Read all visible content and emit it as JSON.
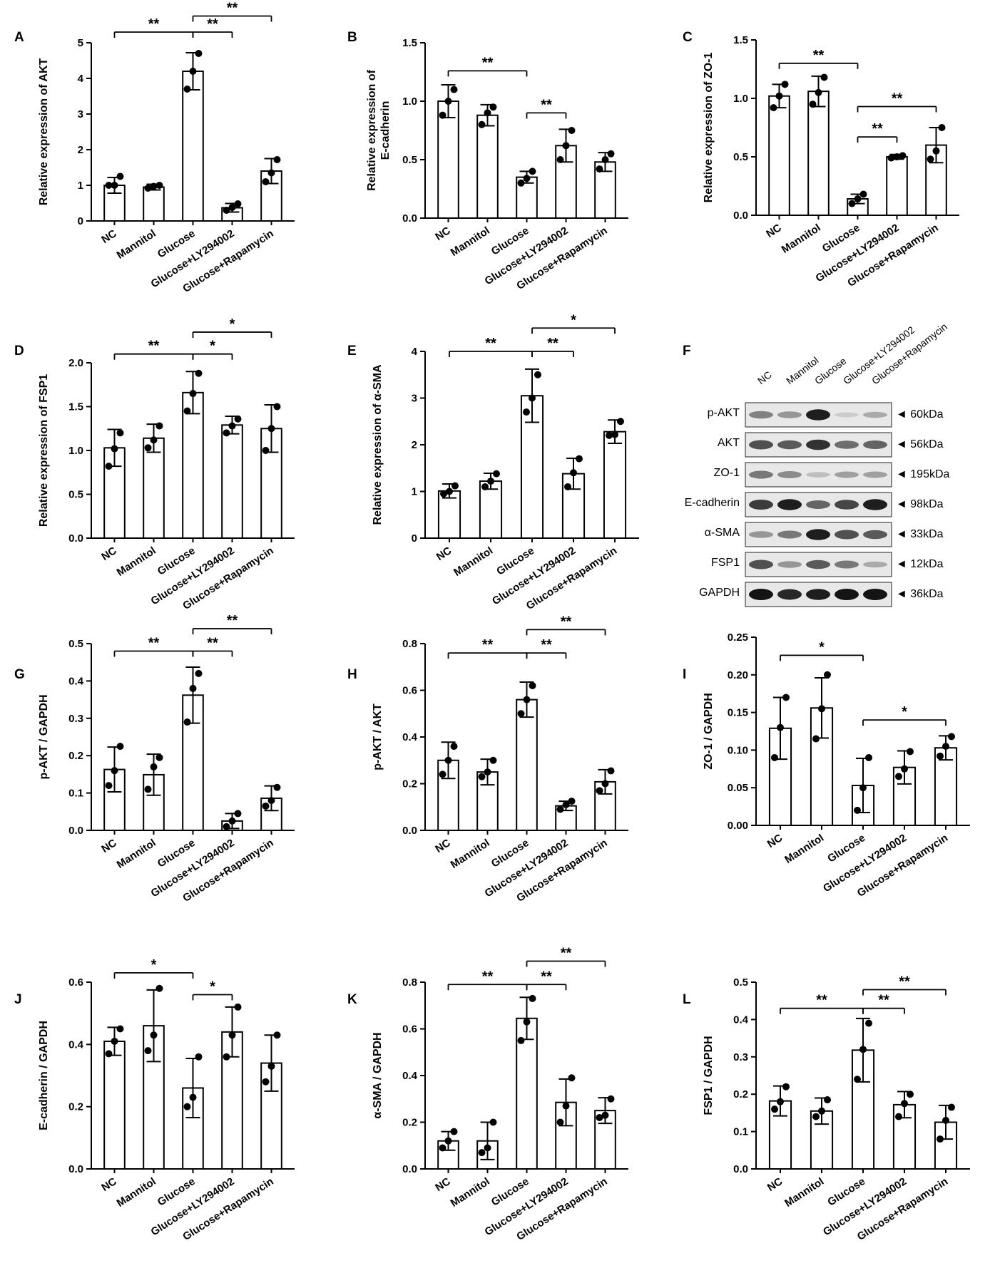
{
  "chart_data": [
    {
      "panel": "A",
      "type": "bar",
      "ylabel": "Relative expression of AKT",
      "ylim": [
        0,
        5
      ],
      "yticks": [
        0,
        1,
        2,
        3,
        4,
        5
      ],
      "categories": [
        "NC",
        "Mannitol",
        "Glucose",
        "Glucose+LY294002",
        "Glucose+Rapamycin"
      ],
      "values": [
        1.0,
        0.95,
        4.2,
        0.37,
        1.4
      ],
      "errors": [
        0.22,
        0.08,
        0.52,
        0.12,
        0.35
      ],
      "points": [
        [
          1.0,
          1.0,
          1.25
        ],
        [
          0.92,
          0.97,
          1.0
        ],
        [
          3.7,
          4.2,
          4.7
        ],
        [
          0.3,
          0.38,
          0.48
        ],
        [
          1.1,
          1.35,
          1.72
        ]
      ],
      "sig": [
        {
          "from": 0,
          "to": 2,
          "label": "**",
          "y": 5.3
        },
        {
          "from": 2,
          "to": 3,
          "label": "**",
          "y": 5.3
        },
        {
          "from": 2,
          "to": 4,
          "label": "**",
          "y": 5.75
        }
      ]
    },
    {
      "panel": "B",
      "type": "bar",
      "ylabel": "Relative expression of E-cadherin",
      "ylim": [
        0,
        1.5
      ],
      "yticks": [
        "0.0",
        "0.5",
        "1.0",
        "1.5"
      ],
      "categories": [
        "NC",
        "Mannitol",
        "Glucose",
        "Glucose+LY294002",
        "Glucose+Rapamycin"
      ],
      "values": [
        1.0,
        0.88,
        0.35,
        0.62,
        0.48
      ],
      "errors": [
        0.14,
        0.09,
        0.05,
        0.14,
        0.08
      ],
      "points": [
        [
          0.88,
          1.0,
          1.1
        ],
        [
          0.8,
          0.9,
          0.95
        ],
        [
          0.3,
          0.34,
          0.4
        ],
        [
          0.5,
          0.62,
          0.75
        ],
        [
          0.42,
          0.5,
          0.55
        ]
      ],
      "sig": [
        {
          "from": 0,
          "to": 2,
          "label": "**",
          "y": 1.26
        },
        {
          "from": 2,
          "to": 3,
          "label": "**",
          "y": 0.9
        }
      ]
    },
    {
      "panel": "C",
      "type": "bar",
      "ylabel": "Relative expression of ZO-1",
      "ylim": [
        0,
        1.5
      ],
      "yticks": [
        "0.0",
        "0.5",
        "1.0",
        "1.5"
      ],
      "categories": [
        "NC",
        "Mannitol",
        "Glucose",
        "Glucose+LY294002",
        "Glucose+Rapamycin"
      ],
      "values": [
        1.02,
        1.06,
        0.14,
        0.5,
        0.6
      ],
      "errors": [
        0.1,
        0.13,
        0.04,
        0.02,
        0.15
      ],
      "points": [
        [
          0.92,
          1.02,
          1.12
        ],
        [
          0.95,
          1.05,
          1.18
        ],
        [
          0.1,
          0.14,
          0.18
        ],
        [
          0.49,
          0.5,
          0.51
        ],
        [
          0.48,
          0.55,
          0.75
        ]
      ],
      "sig": [
        {
          "from": 0,
          "to": 2,
          "label": "**",
          "y": 1.3
        },
        {
          "from": 2,
          "to": 3,
          "label": "**",
          "y": 0.67
        },
        {
          "from": 2,
          "to": 4,
          "label": "**",
          "y": 0.93
        }
      ]
    },
    {
      "panel": "D",
      "type": "bar",
      "ylabel": "Relative expression of FSP1",
      "ylim": [
        0,
        2.0
      ],
      "yticks": [
        "0.0",
        "0.5",
        "1.0",
        "1.5",
        "2.0"
      ],
      "categories": [
        "NC",
        "Mannitol",
        "Glucose",
        "Glucose+LY294002",
        "Glucose+Rapamycin"
      ],
      "values": [
        1.03,
        1.14,
        1.66,
        1.29,
        1.25
      ],
      "errors": [
        0.21,
        0.16,
        0.24,
        0.1,
        0.27
      ],
      "points": [
        [
          0.82,
          1.02,
          1.2
        ],
        [
          1.03,
          1.12,
          1.28
        ],
        [
          1.45,
          1.65,
          1.88
        ],
        [
          1.2,
          1.28,
          1.36
        ],
        [
          1.0,
          1.25,
          1.5
        ]
      ],
      "sig": [
        {
          "from": 0,
          "to": 2,
          "label": "**",
          "y": 2.1
        },
        {
          "from": 2,
          "to": 3,
          "label": "*",
          "y": 2.1
        },
        {
          "from": 2,
          "to": 4,
          "label": "*",
          "y": 2.35
        }
      ]
    },
    {
      "panel": "E",
      "type": "bar",
      "ylabel": "Relative expression of α-SMA",
      "ylim": [
        0,
        4
      ],
      "yticks": [
        0,
        1,
        2,
        3,
        4
      ],
      "categories": [
        "NC",
        "Mannitol",
        "Glucose",
        "Glucose+LY294002",
        "Glucose+Rapamycin"
      ],
      "values": [
        1.01,
        1.22,
        3.05,
        1.38,
        2.28
      ],
      "errors": [
        0.15,
        0.17,
        0.57,
        0.33,
        0.25
      ],
      "points": [
        [
          0.95,
          1.0,
          1.12
        ],
        [
          1.1,
          1.22,
          1.38
        ],
        [
          2.7,
          3.0,
          3.5
        ],
        [
          1.1,
          1.4,
          1.7
        ],
        [
          2.2,
          2.22,
          2.5
        ]
      ],
      "sig": [
        {
          "from": 0,
          "to": 2,
          "label": "**",
          "y": 4.0
        },
        {
          "from": 2,
          "to": 3,
          "label": "**",
          "y": 4.0
        },
        {
          "from": 2,
          "to": 4,
          "label": "*",
          "y": 4.5
        }
      ]
    },
    {
      "panel": "G",
      "type": "bar",
      "ylabel": "p-AKT / GAPDH",
      "ylim": [
        0,
        0.5
      ],
      "yticks": [
        "0.0",
        "0.1",
        "0.2",
        "0.3",
        "0.4",
        "0.5"
      ],
      "categories": [
        "NC",
        "Mannitol",
        "Glucose",
        "Glucose+LY294002",
        "Glucose+Rapamycin"
      ],
      "values": [
        0.163,
        0.149,
        0.362,
        0.025,
        0.086
      ],
      "errors": [
        0.06,
        0.055,
        0.075,
        0.02,
        0.033
      ],
      "points": [
        [
          0.12,
          0.16,
          0.225
        ],
        [
          0.11,
          0.17,
          0.195
        ],
        [
          0.29,
          0.38,
          0.42
        ],
        [
          0.01,
          0.025,
          0.045
        ],
        [
          0.065,
          0.08,
          0.115
        ]
      ],
      "sig": [
        {
          "from": 0,
          "to": 2,
          "label": "**",
          "y": 0.48
        },
        {
          "from": 2,
          "to": 3,
          "label": "**",
          "y": 0.48
        },
        {
          "from": 2,
          "to": 4,
          "label": "**",
          "y": 0.54
        }
      ]
    },
    {
      "panel": "H",
      "type": "bar",
      "ylabel": "p-AKT / AKT",
      "ylim": [
        0,
        0.8
      ],
      "yticks": [
        "0.0",
        "0.2",
        "0.4",
        "0.6",
        "0.8"
      ],
      "categories": [
        "NC",
        "Mannitol",
        "Glucose",
        "Glucose+LY294002",
        "Glucose+Rapamycin"
      ],
      "values": [
        0.3,
        0.25,
        0.56,
        0.105,
        0.208
      ],
      "errors": [
        0.078,
        0.055,
        0.075,
        0.02,
        0.052
      ],
      "points": [
        [
          0.24,
          0.3,
          0.36
        ],
        [
          0.23,
          0.25,
          0.3
        ],
        [
          0.5,
          0.56,
          0.62
        ],
        [
          0.09,
          0.11,
          0.125
        ],
        [
          0.17,
          0.2,
          0.255
        ]
      ],
      "sig": [
        {
          "from": 0,
          "to": 2,
          "label": "**",
          "y": 0.76
        },
        {
          "from": 2,
          "to": 3,
          "label": "**",
          "y": 0.76
        },
        {
          "from": 2,
          "to": 4,
          "label": "**",
          "y": 0.86
        }
      ]
    },
    {
      "panel": "I",
      "type": "bar",
      "ylabel": "ZO-1 / GAPDH",
      "ylim": [
        0,
        0.25
      ],
      "yticks": [
        "0.00",
        "0.05",
        "0.10",
        "0.15",
        "0.20",
        "0.25"
      ],
      "categories": [
        "NC",
        "Mannitol",
        "Glucose",
        "Glucose+LY294002",
        "Glucose+Rapamycin"
      ],
      "values": [
        0.129,
        0.156,
        0.053,
        0.077,
        0.103
      ],
      "errors": [
        0.041,
        0.04,
        0.036,
        0.022,
        0.016
      ],
      "points": [
        [
          0.09,
          0.13,
          0.17
        ],
        [
          0.115,
          0.155,
          0.2
        ],
        [
          0.02,
          0.05,
          0.09
        ],
        [
          0.065,
          0.075,
          0.098
        ],
        [
          0.092,
          0.105,
          0.118
        ]
      ],
      "sig": [
        {
          "from": 0,
          "to": 2,
          "label": "*",
          "y": 0.226
        },
        {
          "from": 2,
          "to": 4,
          "label": "*",
          "y": 0.14
        }
      ]
    },
    {
      "panel": "J",
      "type": "bar",
      "ylabel": "E-cadherin / GAPDH",
      "ylim": [
        0,
        0.6
      ],
      "yticks": [
        "0.0",
        "0.2",
        "0.4",
        "0.6"
      ],
      "categories": [
        "NC",
        "Mannitol",
        "Glucose",
        "Glucose+LY294002",
        "Glucose+Rapamycin"
      ],
      "values": [
        0.41,
        0.46,
        0.26,
        0.44,
        0.34
      ],
      "errors": [
        0.045,
        0.115,
        0.095,
        0.08,
        0.09
      ],
      "points": [
        [
          0.37,
          0.41,
          0.45
        ],
        [
          0.38,
          0.43,
          0.58
        ],
        [
          0.2,
          0.23,
          0.36
        ],
        [
          0.36,
          0.43,
          0.52
        ],
        [
          0.28,
          0.33,
          0.43
        ]
      ],
      "sig": [
        {
          "from": 0,
          "to": 2,
          "label": "*",
          "y": 0.63
        },
        {
          "from": 2,
          "to": 3,
          "label": "*",
          "y": 0.56
        }
      ]
    },
    {
      "panel": "K",
      "type": "bar",
      "ylabel": "α-SMA / GAPDH",
      "ylim": [
        0,
        0.8
      ],
      "yticks": [
        "0.0",
        "0.2",
        "0.4",
        "0.6",
        "0.8"
      ],
      "categories": [
        "NC",
        "Mannitol",
        "Glucose",
        "Glucose+LY294002",
        "Glucose+Rapamycin"
      ],
      "values": [
        0.12,
        0.12,
        0.645,
        0.285,
        0.25
      ],
      "errors": [
        0.04,
        0.08,
        0.09,
        0.1,
        0.055
      ],
      "points": [
        [
          0.09,
          0.12,
          0.16
        ],
        [
          0.07,
          0.09,
          0.2
        ],
        [
          0.55,
          0.63,
          0.73
        ],
        [
          0.2,
          0.27,
          0.39
        ],
        [
          0.22,
          0.23,
          0.3
        ]
      ],
      "sig": [
        {
          "from": 0,
          "to": 2,
          "label": "**",
          "y": 0.79
        },
        {
          "from": 2,
          "to": 3,
          "label": "**",
          "y": 0.79
        },
        {
          "from": 2,
          "to": 4,
          "label": "**",
          "y": 0.89
        }
      ]
    },
    {
      "panel": "L",
      "type": "bar",
      "ylabel": "FSP1 / GAPDH",
      "ylim": [
        0,
        0.5
      ],
      "yticks": [
        "0.0",
        "0.1",
        "0.2",
        "0.3",
        "0.4",
        "0.5"
      ],
      "categories": [
        "NC",
        "Mannitol",
        "Glucose",
        "Glucose+LY294002",
        "Glucose+Rapamycin"
      ],
      "values": [
        0.182,
        0.155,
        0.318,
        0.172,
        0.125
      ],
      "errors": [
        0.04,
        0.035,
        0.085,
        0.035,
        0.045
      ],
      "points": [
        [
          0.16,
          0.18,
          0.22
        ],
        [
          0.14,
          0.155,
          0.185
        ],
        [
          0.24,
          0.32,
          0.39
        ],
        [
          0.14,
          0.175,
          0.2
        ],
        [
          0.08,
          0.13,
          0.165
        ]
      ],
      "sig": [
        {
          "from": 0,
          "to": 2,
          "label": "**",
          "y": 0.43
        },
        {
          "from": 2,
          "to": 3,
          "label": "**",
          "y": 0.43
        },
        {
          "from": 2,
          "to": 4,
          "label": "**",
          "y": 0.48
        }
      ]
    }
  ],
  "western_blot": {
    "panel": "F",
    "lanes": [
      "NC",
      "Mannitol",
      "Glucose",
      "Glucose+LY294002",
      "Glucose+Rapamycin"
    ],
    "rows": [
      {
        "protein": "p-AKT",
        "size": "◄ 60kDa",
        "intensity": [
          0.45,
          0.35,
          0.95,
          0.08,
          0.25
        ]
      },
      {
        "protein": "AKT",
        "size": "◄ 56kDa",
        "intensity": [
          0.7,
          0.65,
          0.85,
          0.55,
          0.6
        ]
      },
      {
        "protein": "ZO-1",
        "size": "◄ 195kDa",
        "intensity": [
          0.5,
          0.4,
          0.15,
          0.3,
          0.3
        ]
      },
      {
        "protein": "E-cadherin",
        "size": "◄ 98kDa",
        "intensity": [
          0.8,
          0.95,
          0.6,
          0.75,
          0.95
        ]
      },
      {
        "protein": "α-SMA",
        "size": "◄ 33kDa",
        "intensity": [
          0.35,
          0.5,
          0.95,
          0.7,
          0.65
        ]
      },
      {
        "protein": "FSP1",
        "size": "◄ 12kDa",
        "intensity": [
          0.7,
          0.35,
          0.65,
          0.5,
          0.25
        ]
      },
      {
        "protein": "GAPDH",
        "size": "◄ 36kDa",
        "intensity": [
          1.0,
          0.9,
          0.95,
          1.0,
          1.0
        ]
      }
    ]
  }
}
